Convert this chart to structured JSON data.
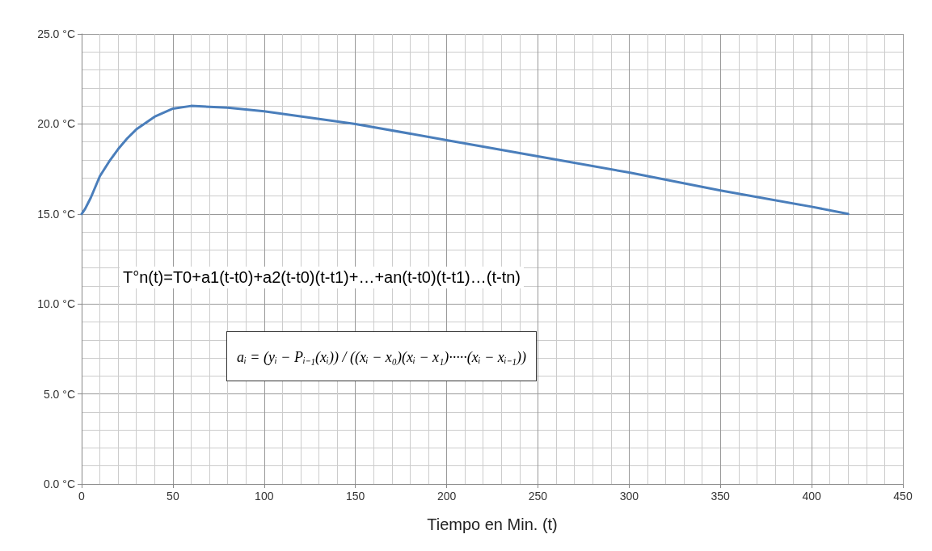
{
  "chart_data": {
    "type": "line",
    "xlabel": "Tiempo en Min. (t)",
    "x": [
      0,
      2,
      5,
      10,
      15,
      20,
      25,
      30,
      40,
      50,
      60,
      70,
      80,
      100,
      150,
      200,
      250,
      300,
      350,
      400,
      420
    ],
    "series": [
      {
        "color": "#4a7ebb",
        "values": [
          15.0,
          15.3,
          15.9,
          17.1,
          17.9,
          18.6,
          19.2,
          19.7,
          20.4,
          20.85,
          21.0,
          20.95,
          20.9,
          20.7,
          20.0,
          19.1,
          18.2,
          17.3,
          16.3,
          15.4,
          15.0
        ]
      }
    ],
    "xlim": [
      0,
      450
    ],
    "xticks": [
      0,
      50,
      100,
      150,
      200,
      250,
      300,
      350,
      400,
      450
    ],
    "ylim": [
      0,
      25
    ],
    "yticks": [
      {
        "value": 0,
        "label": "0.0 °C"
      },
      {
        "value": 5,
        "label": "5.0 °C"
      },
      {
        "value": 10,
        "label": "10.0 °C"
      },
      {
        "value": 15,
        "label": "15.0 °C"
      },
      {
        "value": 20,
        "label": "20.0 °C"
      },
      {
        "value": 25,
        "label": "25.0 °C"
      }
    ],
    "grid": true,
    "marker": "none",
    "line_style": "solid",
    "annotations": [
      "T°n(t)=T0+a1(t-t0)+a2(t-t0)(t-t1)+…+an(t-t0)(t-t1)…(t-tn)",
      "aᵢ = (yᵢ − Pᵢ₋₁(xᵢ)) / ((xᵢ − x₀)(xᵢ − x₁)·····(xᵢ − xᵢ₋₁))"
    ]
  }
}
